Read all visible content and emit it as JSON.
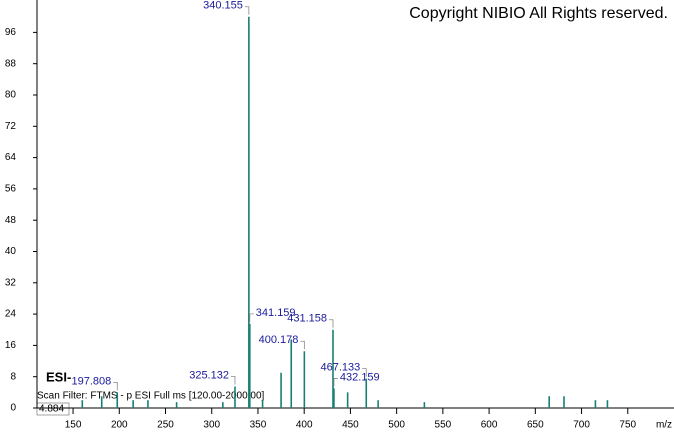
{
  "chart_data": {
    "type": "bar",
    "copyright": "Copyright NIBIO All Rights reserved.",
    "ionization": "ESI-",
    "scan_filter": "Scan Filter: FTMS - p ESI Full ms [120.00-2000.00]",
    "retention": "4.884",
    "xlabel": "m/z",
    "xlim": [
      111,
      800
    ],
    "ylim": [
      0,
      103
    ],
    "xticks": [
      150,
      200,
      250,
      300,
      350,
      400,
      450,
      500,
      550,
      600,
      650,
      700,
      750
    ],
    "yticks": [
      0,
      8,
      16,
      24,
      32,
      40,
      48,
      56,
      64,
      72,
      80,
      88,
      96
    ],
    "series": [
      {
        "color": "#1a7f73",
        "labeled": true,
        "x": [
          197.808,
          325.132,
          340.155,
          341.159,
          400.178,
          431.158,
          432.159,
          467.133
        ],
        "values": [
          4,
          5.5,
          100,
          21.5,
          14.5,
          20,
          5,
          7.5
        ]
      },
      {
        "color": "#1a7f73",
        "labeled": false,
        "x": [
          160,
          181,
          215,
          231,
          262,
          312,
          355,
          375,
          386,
          447,
          480,
          530,
          665,
          681,
          715,
          728
        ],
        "values": [
          2,
          3,
          2,
          2,
          1.5,
          1.5,
          2,
          9,
          17.5,
          4,
          2,
          1.5,
          3,
          3,
          2,
          2
        ]
      }
    ]
  }
}
